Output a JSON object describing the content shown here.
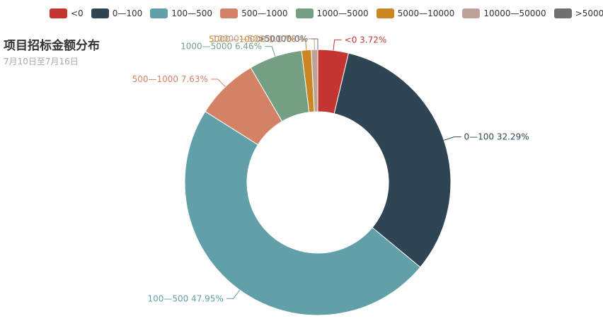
{
  "header": {
    "title": "项目招标金额分布",
    "subtitle": "7月10日至7月16日"
  },
  "colors": [
    "#c23531",
    "#2f4554",
    "#61a0a8",
    "#d48265",
    "#749f83",
    "#ca8622",
    "#bda29a",
    "#6e7074"
  ],
  "chart_data": {
    "type": "pie",
    "variant": "donut",
    "legend_position": "top",
    "title": "项目招标金额分布",
    "subtitle": "7月10日至7月16日",
    "labels": [
      "<0",
      "0—100",
      "100—500",
      "500—1000",
      "1000—5000",
      "5000—10000",
      "10000—50000",
      ">50000"
    ],
    "values": [
      3.72,
      32.29,
      47.95,
      7.63,
      6.46,
      1.17,
      0.78,
      0
    ],
    "unit": "%",
    "data_labels": [
      "<0 3.72%",
      "0—100 32.29%",
      "100—500 47.95%",
      "500—1000 7.63%",
      "1000—5000 6.46%",
      "5000—10000 1.17%",
      "10000—50000 0.78%",
      ">50000 0%"
    ]
  }
}
